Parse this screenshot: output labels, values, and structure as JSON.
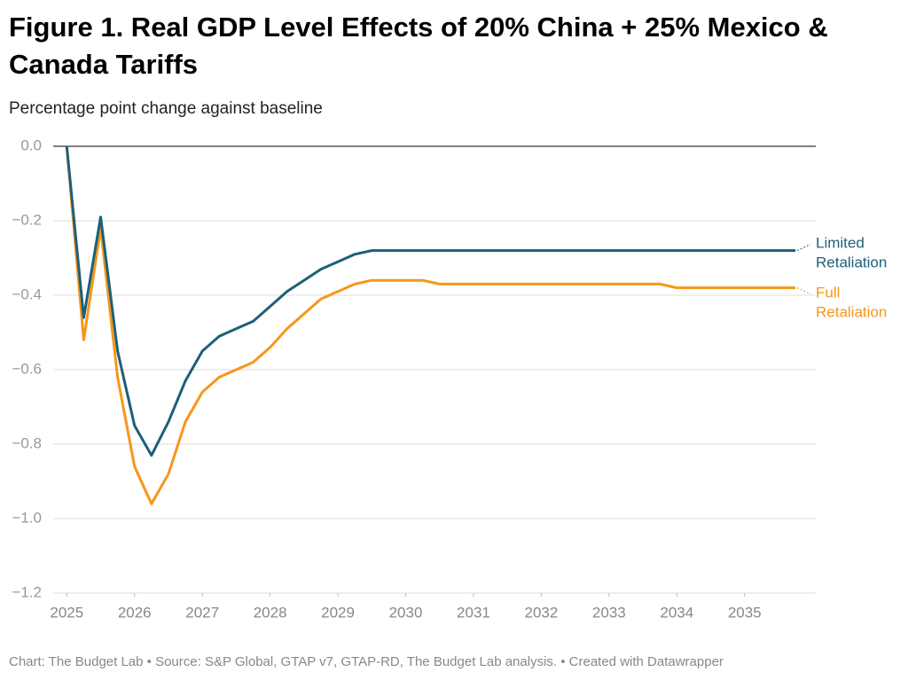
{
  "chart_data": {
    "type": "line",
    "title": "Figure 1. Real GDP Level Effects of 20% China + 25% Mexico & Canada Tariffs",
    "subtitle": "Percentage point change against baseline",
    "footer": "Chart: The Budget Lab • Source: S&P Global, GTAP v7, GTAP-RD, The Budget Lab analysis. • Created with Datawrapper",
    "x": [
      2025,
      2025.25,
      2025.5,
      2025.75,
      2026,
      2026.25,
      2026.5,
      2026.75,
      2027,
      2027.25,
      2027.5,
      2027.75,
      2028,
      2028.25,
      2028.5,
      2028.75,
      2029,
      2029.25,
      2029.5,
      2029.75,
      2030,
      2030.25,
      2030.5,
      2030.75,
      2031,
      2031.25,
      2031.5,
      2031.75,
      2032,
      2032.25,
      2032.5,
      2032.75,
      2033,
      2033.25,
      2033.5,
      2033.75,
      2034,
      2034.25,
      2034.5,
      2034.75,
      2035,
      2035.25,
      2035.5,
      2035.75
    ],
    "series": [
      {
        "name": "Limited Retaliation",
        "color": "#1d5f7a",
        "values": [
          0,
          -0.46,
          -0.19,
          -0.55,
          -0.75,
          -0.83,
          -0.74,
          -0.63,
          -0.55,
          -0.51,
          -0.49,
          -0.47,
          -0.43,
          -0.39,
          -0.36,
          -0.33,
          -0.31,
          -0.29,
          -0.28,
          -0.28,
          -0.28,
          -0.28,
          -0.28,
          -0.28,
          -0.28,
          -0.28,
          -0.28,
          -0.28,
          -0.28,
          -0.28,
          -0.28,
          -0.28,
          -0.28,
          -0.28,
          -0.28,
          -0.28,
          -0.28,
          -0.28,
          -0.28,
          -0.28,
          -0.28,
          -0.28,
          -0.28,
          -0.28
        ]
      },
      {
        "name": "Full Retaliation",
        "color": "#f5971b",
        "values": [
          0,
          -0.52,
          -0.22,
          -0.62,
          -0.86,
          -0.96,
          -0.88,
          -0.74,
          -0.66,
          -0.62,
          -0.6,
          -0.58,
          -0.54,
          -0.49,
          -0.45,
          -0.41,
          -0.39,
          -0.37,
          -0.36,
          -0.36,
          -0.36,
          -0.36,
          -0.37,
          -0.37,
          -0.37,
          -0.37,
          -0.37,
          -0.37,
          -0.37,
          -0.37,
          -0.37,
          -0.37,
          -0.37,
          -0.37,
          -0.37,
          -0.37,
          -0.38,
          -0.38,
          -0.38,
          -0.38,
          -0.38,
          -0.38,
          -0.38,
          -0.38
        ]
      }
    ],
    "xlim": [
      2024.8,
      2036.05
    ],
    "xticks": [
      2025,
      2026,
      2027,
      2028,
      2029,
      2030,
      2031,
      2032,
      2033,
      2034,
      2035
    ],
    "ylim": [
      -1.2,
      0
    ],
    "yticks": [
      {
        "value": 0,
        "label": "0.0"
      },
      {
        "value": -0.2,
        "label": "−0.2"
      },
      {
        "value": -0.4,
        "label": "−0.4"
      },
      {
        "value": -0.6,
        "label": "−0.6"
      },
      {
        "value": -0.8,
        "label": "−0.8"
      },
      {
        "value": -1,
        "label": "−1.0"
      },
      {
        "value": -1.2,
        "label": "−1.2"
      }
    ],
    "grid": true
  }
}
